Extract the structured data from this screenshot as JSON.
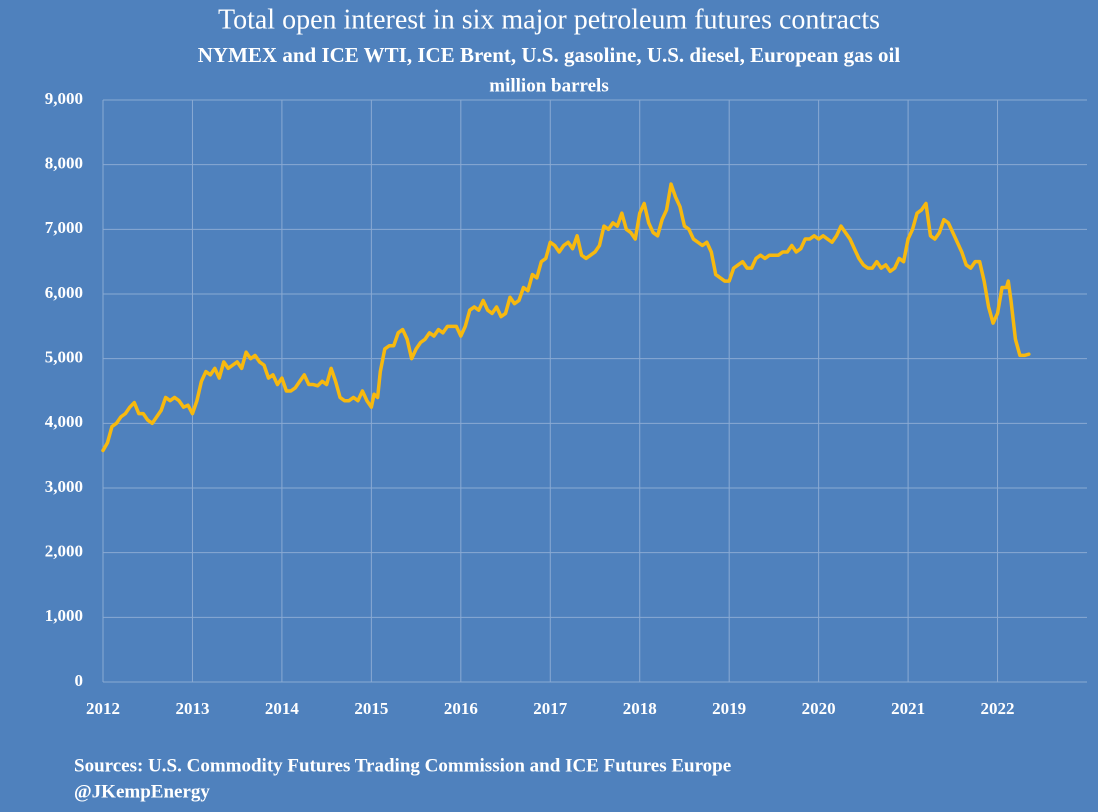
{
  "chart_data": {
    "type": "line",
    "title": "Total open interest in six major petroleum futures contracts",
    "subtitle": "NYMEX and ICE WTI, ICE Brent, U.S. gasoline, U.S. diesel, European gas oil",
    "y_label": "million  barrels",
    "source": "Sources: U.S. Commodity Futures Trading Commission and ICE Futures Europe",
    "credit": "@JKempEnergy",
    "color": "#f7b90f",
    "grid": true,
    "xlim": [
      2012,
      2023
    ],
    "xticks": [
      2012,
      2013,
      2014,
      2015,
      2016,
      2017,
      2018,
      2019,
      2020,
      2021,
      2022
    ],
    "ylim": [
      0,
      9000
    ],
    "yticks": [
      0,
      {
        "value": 1000,
        "label": "1,000"
      },
      {
        "value": 2000,
        "label": "2,000"
      },
      {
        "value": 3000,
        "label": "3,000"
      },
      {
        "value": 4000,
        "label": "4,000"
      },
      {
        "value": 5000,
        "label": "5,000"
      },
      {
        "value": 6000,
        "label": "6,000"
      },
      {
        "value": 7000,
        "label": "7,000"
      },
      {
        "value": 8000,
        "label": "8,000"
      },
      {
        "value": 9000,
        "label": "9,000"
      }
    ],
    "x": [
      2012.0,
      2012.05,
      2012.1,
      2012.15,
      2012.2,
      2012.25,
      2012.3,
      2012.35,
      2012.4,
      2012.45,
      2012.5,
      2012.55,
      2012.6,
      2012.65,
      2012.7,
      2012.75,
      2012.8,
      2012.85,
      2012.9,
      2012.95,
      2013.0,
      2013.05,
      2013.1,
      2013.15,
      2013.2,
      2013.25,
      2013.3,
      2013.35,
      2013.4,
      2013.45,
      2013.5,
      2013.55,
      2013.6,
      2013.65,
      2013.7,
      2013.75,
      2013.8,
      2013.85,
      2013.9,
      2013.95,
      2014.0,
      2014.05,
      2014.1,
      2014.15,
      2014.2,
      2014.25,
      2014.3,
      2014.35,
      2014.4,
      2014.45,
      2014.5,
      2014.55,
      2014.6,
      2014.65,
      2014.7,
      2014.75,
      2014.8,
      2014.85,
      2014.9,
      2014.95,
      2015.0,
      2015.03,
      2015.07,
      2015.1,
      2015.15,
      2015.2,
      2015.25,
      2015.3,
      2015.35,
      2015.4,
      2015.45,
      2015.5,
      2015.55,
      2015.6,
      2015.65,
      2015.7,
      2015.75,
      2015.8,
      2015.85,
      2015.9,
      2015.95,
      2016.0,
      2016.05,
      2016.1,
      2016.15,
      2016.2,
      2016.25,
      2016.3,
      2016.35,
      2016.4,
      2016.45,
      2016.5,
      2016.55,
      2016.6,
      2016.65,
      2016.7,
      2016.75,
      2016.8,
      2016.85,
      2016.9,
      2016.95,
      2017.0,
      2017.05,
      2017.1,
      2017.15,
      2017.2,
      2017.25,
      2017.3,
      2017.35,
      2017.4,
      2017.45,
      2017.5,
      2017.55,
      2017.6,
      2017.65,
      2017.7,
      2017.75,
      2017.8,
      2017.85,
      2017.9,
      2017.95,
      2018.0,
      2018.05,
      2018.1,
      2018.15,
      2018.2,
      2018.25,
      2018.3,
      2018.35,
      2018.4,
      2018.45,
      2018.5,
      2018.55,
      2018.6,
      2018.65,
      2018.7,
      2018.75,
      2018.8,
      2018.85,
      2018.9,
      2018.95,
      2019.0,
      2019.05,
      2019.1,
      2019.15,
      2019.2,
      2019.25,
      2019.3,
      2019.35,
      2019.4,
      2019.45,
      2019.5,
      2019.55,
      2019.6,
      2019.65,
      2019.7,
      2019.75,
      2019.8,
      2019.85,
      2019.9,
      2019.95,
      2020.0,
      2020.05,
      2020.1,
      2020.15,
      2020.2,
      2020.25,
      2020.3,
      2020.35,
      2020.4,
      2020.45,
      2020.5,
      2020.55,
      2020.6,
      2020.65,
      2020.7,
      2020.75,
      2020.8,
      2020.85,
      2020.9,
      2020.95,
      2021.0,
      2021.05,
      2021.1,
      2021.15,
      2021.2,
      2021.25,
      2021.3,
      2021.35,
      2021.4,
      2021.45,
      2021.5,
      2021.55,
      2021.6,
      2021.65,
      2021.7,
      2021.75,
      2021.8,
      2021.85,
      2021.9,
      2021.95,
      2022.0,
      2022.05,
      2022.1,
      2022.12,
      2022.15,
      2022.2,
      2022.25,
      2022.3,
      2022.35
    ],
    "values": [
      3580,
      3700,
      3950,
      4000,
      4100,
      4150,
      4250,
      4320,
      4150,
      4150,
      4050,
      4000,
      4100,
      4200,
      4400,
      4350,
      4400,
      4350,
      4250,
      4280,
      4150,
      4350,
      4650,
      4800,
      4750,
      4850,
      4700,
      4950,
      4850,
      4900,
      4950,
      4850,
      5100,
      5000,
      5050,
      4950,
      4900,
      4700,
      4750,
      4600,
      4700,
      4500,
      4500,
      4550,
      4650,
      4750,
      4600,
      4600,
      4580,
      4650,
      4600,
      4850,
      4650,
      4400,
      4350,
      4350,
      4400,
      4350,
      4500,
      4350,
      4250,
      4450,
      4400,
      4800,
      5150,
      5200,
      5200,
      5400,
      5450,
      5300,
      5000,
      5150,
      5250,
      5300,
      5400,
      5350,
      5450,
      5400,
      5500,
      5500,
      5500,
      5350,
      5500,
      5750,
      5800,
      5750,
      5900,
      5750,
      5700,
      5800,
      5650,
      5700,
      5950,
      5850,
      5900,
      6100,
      6050,
      6300,
      6250,
      6500,
      6550,
      6800,
      6750,
      6650,
      6750,
      6800,
      6700,
      6900,
      6600,
      6550,
      6600,
      6650,
      6750,
      7050,
      7000,
      7100,
      7050,
      7250,
      7000,
      6950,
      6850,
      7250,
      7400,
      7100,
      6950,
      6900,
      7150,
      7300,
      7700,
      7500,
      7350,
      7050,
      7000,
      6850,
      6800,
      6750,
      6800,
      6650,
      6300,
      6250,
      6200,
      6200,
      6400,
      6450,
      6500,
      6400,
      6400,
      6550,
      6600,
      6550,
      6600,
      6600,
      6600,
      6650,
      6650,
      6750,
      6650,
      6700,
      6850,
      6850,
      6900,
      6850,
      6900,
      6850,
      6800,
      6900,
      7050,
      6950,
      6850,
      6700,
      6550,
      6450,
      6400,
      6400,
      6500,
      6400,
      6450,
      6350,
      6400,
      6550,
      6500,
      6850,
      7000,
      7250,
      7300,
      7400,
      6900,
      6850,
      6950,
      7150,
      7100,
      6950,
      6800,
      6650,
      6450,
      6400,
      6500,
      6500,
      6200,
      5800,
      5550,
      5700,
      6100,
      6100,
      6200,
      5900,
      5300,
      5050,
      5050,
      5070
    ]
  }
}
